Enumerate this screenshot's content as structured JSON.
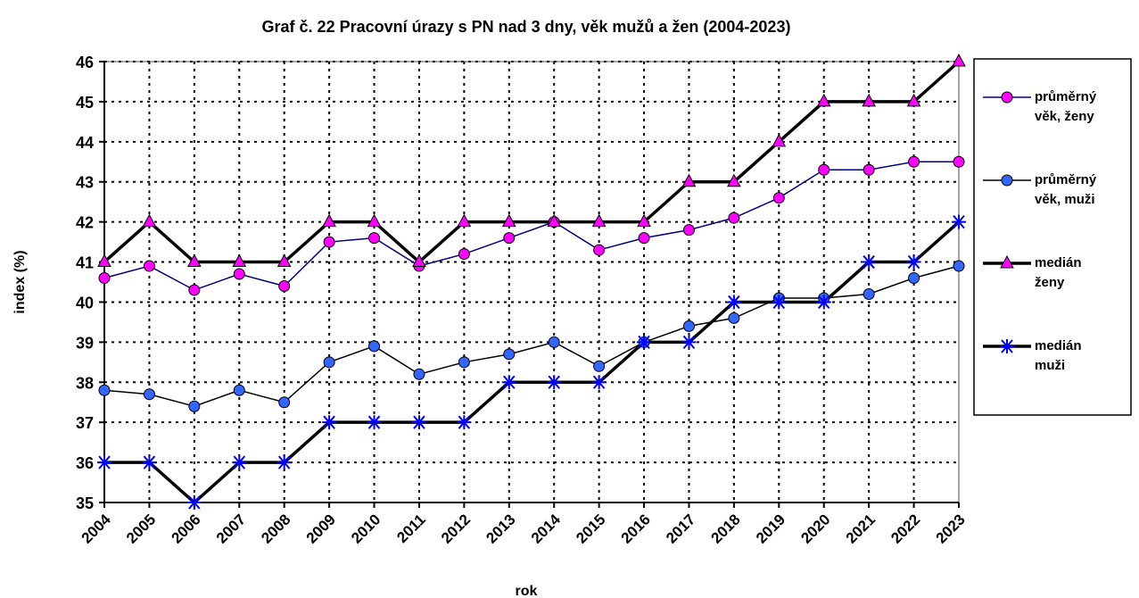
{
  "chart_data": {
    "type": "line",
    "title": "Graf č. 22  Pracovní úrazy s PN nad 3 dny, věk mužů a žen (2004-2023)",
    "x_label": "rok",
    "y_label": "index (%)",
    "categories": [
      "2004",
      "2005",
      "2006",
      "2007",
      "2008",
      "2009",
      "2010",
      "2011",
      "2012",
      "2013",
      "2014",
      "2015",
      "2016",
      "2017",
      "2018",
      "2019",
      "2020",
      "2021",
      "2022",
      "2023"
    ],
    "ylim": [
      35,
      46
    ],
    "yticks": [
      35,
      36,
      37,
      38,
      39,
      40,
      41,
      42,
      43,
      44,
      45,
      46
    ],
    "grid": true,
    "legend": "right",
    "series": [
      {
        "name": "průměrný věk, ženy",
        "color": "#ff00ff",
        "line_color": "#000080",
        "line_width": 1.5,
        "marker": "circle",
        "values": [
          40.6,
          40.9,
          40.3,
          40.7,
          40.4,
          41.5,
          41.6,
          40.9,
          41.2,
          41.6,
          42.0,
          41.3,
          41.6,
          41.8,
          42.1,
          42.6,
          43.3,
          43.3,
          43.5,
          43.5
        ]
      },
      {
        "name": "průměrný věk, muži",
        "color": "#3366ff",
        "line_color": "#000000",
        "line_width": 1.5,
        "marker": "circle",
        "values": [
          37.8,
          37.7,
          37.4,
          37.8,
          37.5,
          38.5,
          38.9,
          38.2,
          38.5,
          38.7,
          39.0,
          38.4,
          39.0,
          39.4,
          39.6,
          40.1,
          40.1,
          40.2,
          40.6,
          40.9
        ]
      },
      {
        "name": "medián ženy",
        "color": "#ff00ff",
        "line_color": "#000000",
        "line_width": 3.5,
        "marker": "triangle",
        "values": [
          41,
          42,
          41,
          41,
          41,
          42,
          42,
          41,
          42,
          42,
          42,
          42,
          42,
          43,
          43,
          44,
          45,
          45,
          45,
          46
        ]
      },
      {
        "name": "medián muži",
        "color": "#0000ff",
        "line_color": "#000000",
        "line_width": 3.5,
        "marker": "star",
        "values": [
          36,
          36,
          35,
          36,
          36,
          37,
          37,
          37,
          37,
          38,
          38,
          38,
          39,
          39,
          40,
          40,
          40,
          41,
          41,
          42
        ]
      }
    ]
  }
}
